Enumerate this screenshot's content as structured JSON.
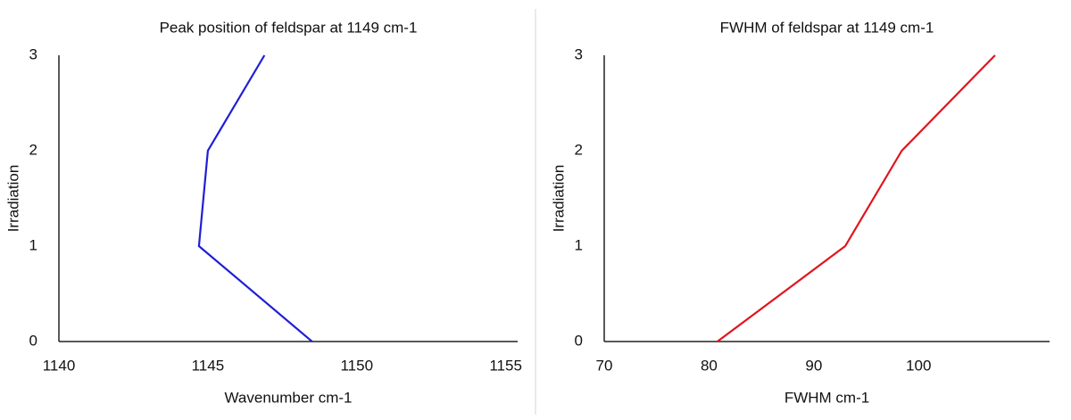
{
  "chart_data": [
    {
      "type": "line",
      "title": "Peak position of feldspar at 1149 cm-1",
      "x_label": "Wavenumber cm-1",
      "y_label": "Irradiation",
      "x": [
        1148.5,
        1144.7,
        1145.0,
        1146.9
      ],
      "values": [
        0,
        1,
        2,
        3
      ],
      "color": "#1f1fd6",
      "xlim": [
        1140,
        1155.4
      ],
      "xticks": [
        1140,
        1145,
        1150,
        1155
      ],
      "ylim": [
        0,
        3
      ],
      "yticks": [
        0,
        1,
        2,
        3
      ]
    },
    {
      "type": "line",
      "title": "FWHM of feldspar at 1149 cm-1",
      "x_label": "FWHM cm-1",
      "y_label": "Irradiation",
      "x": [
        80.8,
        93.0,
        98.4,
        107.3
      ],
      "values": [
        0,
        1,
        2,
        3
      ],
      "color": "#e0141e",
      "xlim": [
        70,
        112.5
      ],
      "xticks": [
        70,
        80,
        90,
        100
      ],
      "ylim": [
        0,
        3
      ],
      "yticks": [
        0,
        1,
        2,
        3
      ]
    }
  ]
}
